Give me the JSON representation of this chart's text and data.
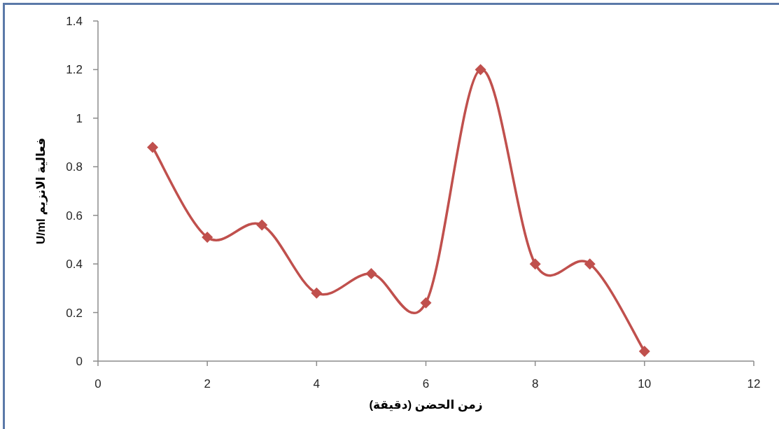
{
  "chart_data": {
    "type": "line",
    "x": [
      1,
      2,
      3,
      4,
      5,
      6,
      7,
      8,
      9,
      10
    ],
    "values": [
      0.88,
      0.51,
      0.56,
      0.28,
      0.36,
      0.24,
      1.2,
      0.4,
      0.4,
      0.04
    ],
    "color": "#c0504d",
    "marker": "diamond",
    "line_style": "solid",
    "xlim": [
      0,
      12
    ],
    "xticks": [
      0,
      2,
      4,
      6,
      8,
      10,
      12
    ],
    "ylim": [
      0,
      1.4
    ],
    "yticks": [
      0,
      0.2,
      0.4,
      0.6,
      0.8,
      1,
      1.2,
      1.4
    ],
    "xlabel": "زمن الحضن (دقيقة)",
    "ylabel": "فعالية الانزيم U/ml"
  }
}
